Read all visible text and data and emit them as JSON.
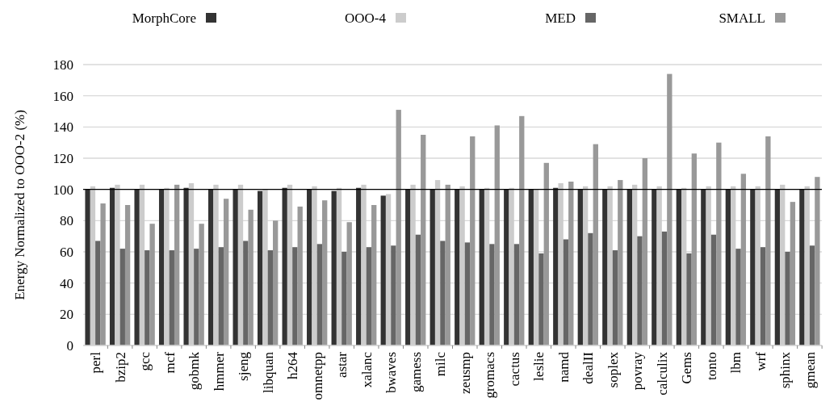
{
  "chart_data": {
    "type": "bar",
    "ylabel": "Energy Normalized to OOO-2 (%)",
    "categories": [
      "perl",
      "bzip2",
      "gcc",
      "mcf",
      "gobmk",
      "hmmer",
      "sjeng",
      "libquan",
      "h264",
      "omnetpp",
      "astar",
      "xalanc",
      "bwaves",
      "gamess",
      "milc",
      "zeusmp",
      "gromacs",
      "cactus",
      "leslie",
      "namd",
      "dealII",
      "soplex",
      "povray",
      "calculix",
      "Gems",
      "tonto",
      "lbm",
      "wrf",
      "sphinx",
      "gmean"
    ],
    "series": [
      {
        "name": "MorphCore",
        "color": "#333333",
        "values": [
          100,
          101,
          100,
          100,
          101,
          100,
          100,
          99,
          101,
          100,
          99,
          101,
          96,
          100,
          100,
          100,
          100,
          100,
          100,
          101,
          100,
          100,
          100,
          100,
          100,
          100,
          100,
          100,
          100,
          100
        ]
      },
      {
        "name": "OOO-4",
        "color": "#cccccc",
        "values": [
          102,
          103,
          103,
          101,
          104,
          103,
          103,
          100,
          103,
          102,
          101,
          103,
          97,
          103,
          106,
          102,
          101,
          101,
          100,
          104,
          102,
          102,
          103,
          102,
          101,
          102,
          102,
          102,
          103,
          102
        ]
      },
      {
        "name": "MED",
        "color": "#666666",
        "values": [
          67,
          62,
          61,
          61,
          62,
          63,
          67,
          61,
          63,
          65,
          60,
          63,
          64,
          71,
          67,
          66,
          65,
          65,
          59,
          68,
          72,
          61,
          70,
          73,
          59,
          71,
          62,
          63,
          60,
          64
        ]
      },
      {
        "name": "SMALL",
        "color": "#999999",
        "values": [
          91,
          90,
          78,
          103,
          78,
          94,
          87,
          80,
          89,
          93,
          79,
          90,
          151,
          135,
          103,
          134,
          141,
          147,
          117,
          105,
          129,
          106,
          120,
          174,
          123,
          130,
          110,
          134,
          92,
          108
        ]
      }
    ],
    "ylim": [
      0,
      180
    ],
    "yticks": [
      0,
      20,
      40,
      60,
      80,
      100,
      120,
      140,
      160,
      180
    ],
    "grid": "y",
    "legend": "top",
    "ref_lines": [
      {
        "axis": "y",
        "value": 100,
        "color": "#000000"
      }
    ]
  }
}
